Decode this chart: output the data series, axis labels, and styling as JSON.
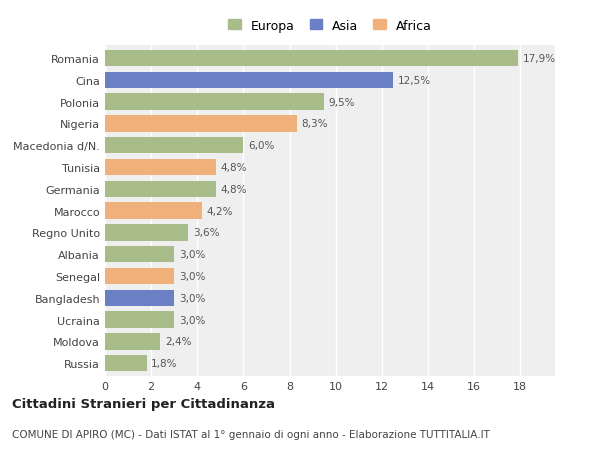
{
  "categories": [
    "Romania",
    "Cina",
    "Polonia",
    "Nigeria",
    "Macedonia d/N.",
    "Tunisia",
    "Germania",
    "Marocco",
    "Regno Unito",
    "Albania",
    "Senegal",
    "Bangladesh",
    "Ucraina",
    "Moldova",
    "Russia"
  ],
  "values": [
    17.9,
    12.5,
    9.5,
    8.3,
    6.0,
    4.8,
    4.8,
    4.2,
    3.6,
    3.0,
    3.0,
    3.0,
    3.0,
    2.4,
    1.8
  ],
  "labels": [
    "17,9%",
    "12,5%",
    "9,5%",
    "8,3%",
    "6,0%",
    "4,8%",
    "4,8%",
    "4,2%",
    "3,6%",
    "3,0%",
    "3,0%",
    "3,0%",
    "3,0%",
    "2,4%",
    "1,8%"
  ],
  "continents": [
    "Europa",
    "Asia",
    "Europa",
    "Africa",
    "Europa",
    "Africa",
    "Europa",
    "Africa",
    "Europa",
    "Europa",
    "Africa",
    "Asia",
    "Europa",
    "Europa",
    "Europa"
  ],
  "colors": {
    "Europa": "#a8bc8a",
    "Asia": "#6b7fc4",
    "Africa": "#f0b07a"
  },
  "xlim": [
    0,
    19.5
  ],
  "xticks": [
    0,
    2,
    4,
    6,
    8,
    10,
    12,
    14,
    16,
    18
  ],
  "background_color": "#ffffff",
  "plot_background": "#efefef",
  "grid_color": "#ffffff",
  "title": "Cittadini Stranieri per Cittadinanza",
  "subtitle": "COMUNE DI APIRO (MC) - Dati ISTAT al 1° gennaio di ogni anno - Elaborazione TUTTITALIA.IT",
  "bar_height": 0.75,
  "label_fontsize": 7.5,
  "ytick_fontsize": 8.0,
  "xtick_fontsize": 8.0,
  "legend_fontsize": 9.0,
  "title_fontsize": 9.5,
  "subtitle_fontsize": 7.5
}
